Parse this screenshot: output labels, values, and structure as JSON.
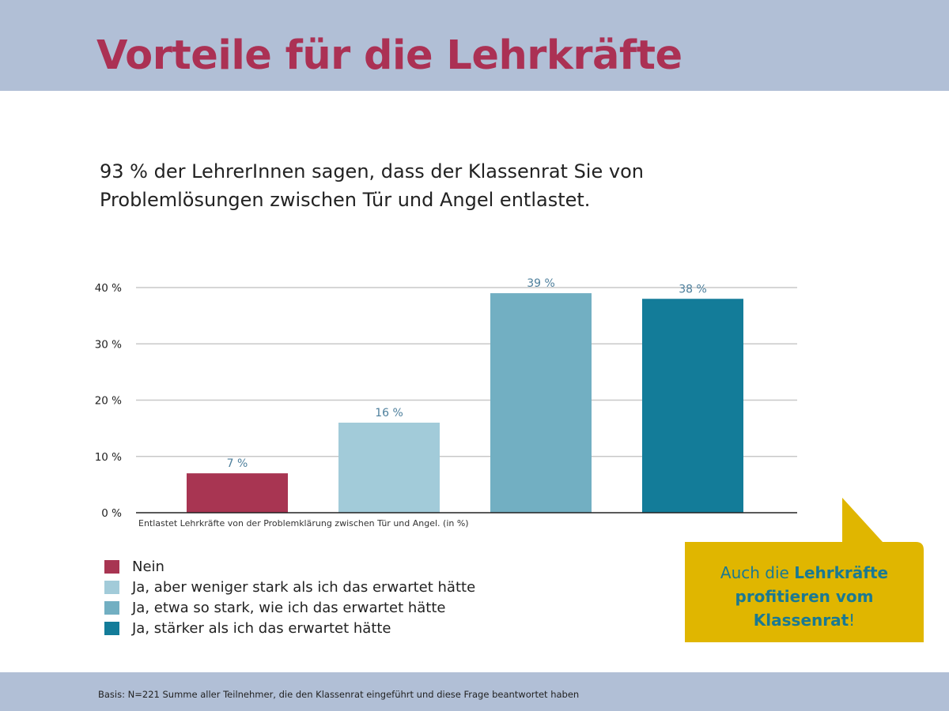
{
  "header": {
    "title": "Vorteile für die Lehrkräfte"
  },
  "subtitle": {
    "line1": "93 % der LehrerInnen sagen, dass der Klassenrat Sie von",
    "line2": "Problemlösungen zwischen Tür und Angel entlastet."
  },
  "chart_data": {
    "type": "bar",
    "categories": [
      "Nein",
      "Ja, aber weniger stark als ich das erwartet hätte",
      "Ja, etwa so stark, wie ich das erwartet hätte",
      "Ja, stärker als ich das erwartet hätte"
    ],
    "values": [
      7,
      16,
      39,
      38
    ],
    "data_labels": [
      "7 %",
      "16 %",
      "39 %",
      "38 %"
    ],
    "colors": [
      "#a83552",
      "#a2cbd9",
      "#72afc2",
      "#137c99"
    ],
    "xlabel": "Entlastet Lehrkräfte von der Problemklärung zwischen Tür und Angel. (in %)",
    "ylabel": "",
    "ylim": [
      0,
      40
    ],
    "yticks": [
      0,
      10,
      20,
      30,
      40
    ],
    "ytick_labels": [
      "0 %",
      "10 %",
      "20 %",
      "30 %",
      "40 %"
    ],
    "grid": true,
    "legend": "bottom-left"
  },
  "callout": {
    "part1": "Auch die ",
    "bold1": "Lehrkräfte",
    "bold2": "profitieren vom",
    "bold3": "Klassenrat",
    "end": "!"
  },
  "footer": {
    "note": "Basis: N=221 Summe aller Teilnehmer, die den Klassenrat eingeführt und diese Frage beantwortet haben"
  },
  "colors": {
    "band": "#b1bfd6",
    "title": "#ab3154",
    "callout": "#e0b600",
    "callout_text": "#1a7992",
    "value_label": "#4d7f9c"
  }
}
